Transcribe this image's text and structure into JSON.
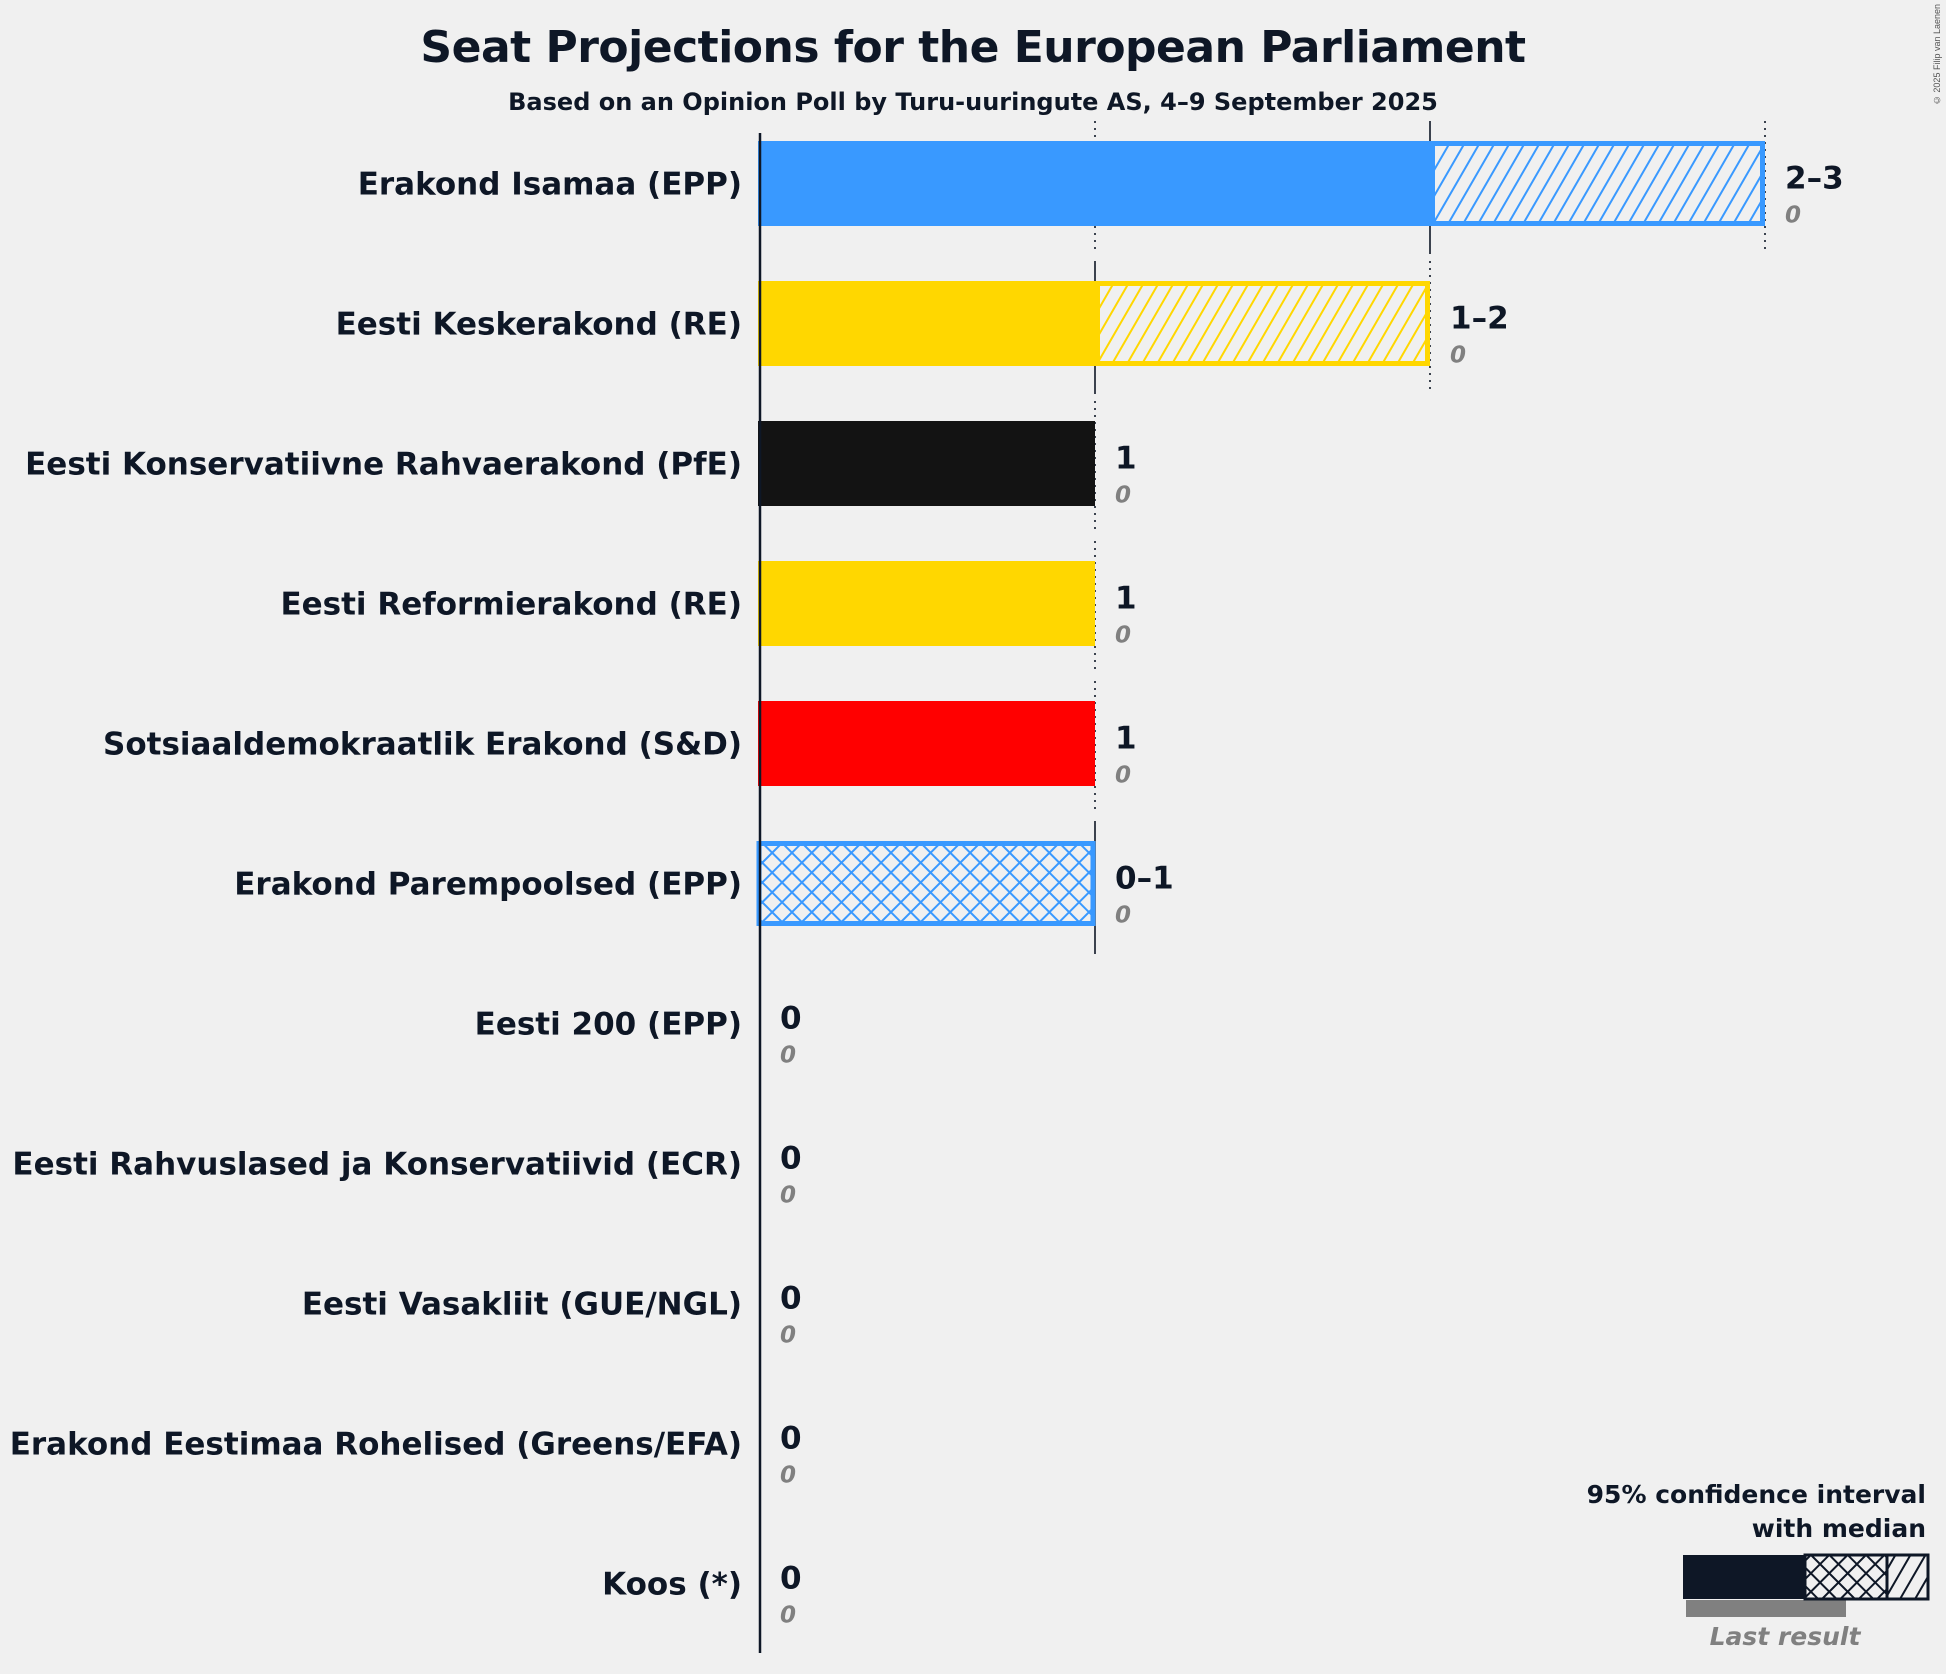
{
  "chart_data": {
    "type": "bar",
    "orientation": "horizontal",
    "title": "Seat Projections for the European Parliament",
    "subtitle": "Based on an Opinion Poll by Turu-uuringute AS, 4–9 September 2025",
    "copyright": "© 2025 Filip van Laenen",
    "xlim": [
      0,
      3
    ],
    "gridlines": [
      1,
      2,
      3
    ],
    "categories": [
      "Erakond Isamaa (EPP)",
      "Eesti Keskerakond (RE)",
      "Eesti Konservatiivne Rahvaerakond (PfE)",
      "Eesti Reformierakond (RE)",
      "Sotsiaaldemokraatlik Erakond (S&D)",
      "Erakond Parempoolsed (EPP)",
      "Eesti 200 (EPP)",
      "Eesti Rahvuslased ja Konservatiivid (ECR)",
      "Eesti Vasakliit (GUE/NGL)",
      "Erakond Eestimaa Rohelised (Greens/EFA)",
      "Koos (*)"
    ],
    "parties": [
      {
        "name": "Erakond Isamaa (EPP)",
        "color": "#3999ff",
        "ci_low": 2,
        "median": 2,
        "ci_high": 3,
        "range_label": "2–3",
        "last_result": 0,
        "last_label": "0"
      },
      {
        "name": "Eesti Keskerakond (RE)",
        "color": "#ffd700",
        "ci_low": 1,
        "median": 1,
        "ci_high": 2,
        "range_label": "1–2",
        "last_result": 0,
        "last_label": "0"
      },
      {
        "name": "Eesti Konservatiivne Rahvaerakond (PfE)",
        "color": "#131313",
        "ci_low": 1,
        "median": 1,
        "ci_high": 1,
        "range_label": "1",
        "last_result": 0,
        "last_label": "0"
      },
      {
        "name": "Eesti Reformierakond (RE)",
        "color": "#ffd700",
        "ci_low": 1,
        "median": 1,
        "ci_high": 1,
        "range_label": "1",
        "last_result": 0,
        "last_label": "0"
      },
      {
        "name": "Sotsiaaldemokraatlik Erakond (S&D)",
        "color": "#ff0000",
        "ci_low": 1,
        "median": 1,
        "ci_high": 1,
        "range_label": "1",
        "last_result": 0,
        "last_label": "0"
      },
      {
        "name": "Erakond Parempoolsed (EPP)",
        "color": "#3999ff",
        "ci_low": 0,
        "median": 1,
        "ci_high": 1,
        "range_label": "0–1",
        "last_result": 0,
        "last_label": "0"
      },
      {
        "name": "Eesti 200 (EPP)",
        "color": "#3999ff",
        "ci_low": 0,
        "median": 0,
        "ci_high": 0,
        "range_label": "0",
        "last_result": 0,
        "last_label": "0"
      },
      {
        "name": "Eesti Rahvuslased ja Konservatiivid (ECR)",
        "color": "#1e3a8a",
        "ci_low": 0,
        "median": 0,
        "ci_high": 0,
        "range_label": "0",
        "last_result": 0,
        "last_label": "0"
      },
      {
        "name": "Eesti Vasakliit (GUE/NGL)",
        "color": "#b00000",
        "ci_low": 0,
        "median": 0,
        "ci_high": 0,
        "range_label": "0",
        "last_result": 0,
        "last_label": "0"
      },
      {
        "name": "Erakond Eestimaa Rohelised (Greens/EFA)",
        "color": "#4caf50",
        "ci_low": 0,
        "median": 0,
        "ci_high": 0,
        "range_label": "0",
        "last_result": 0,
        "last_label": "0"
      },
      {
        "name": "Koos (*)",
        "color": "#888888",
        "ci_low": 0,
        "median": 0,
        "ci_high": 0,
        "range_label": "0",
        "last_result": 0,
        "last_label": "0"
      }
    ],
    "legend": {
      "line1": "95% confidence interval",
      "line2": "with median",
      "last_result": "Last result",
      "placement": "bottom-right"
    }
  }
}
